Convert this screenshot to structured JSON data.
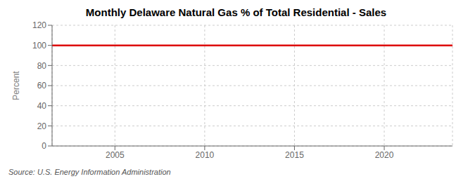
{
  "chart_data": {
    "type": "line",
    "title": "Monthly Delaware Natural Gas % of Total Residential - Sales",
    "ylabel": "Percent",
    "x": [
      2001.5,
      2023.8
    ],
    "values": [
      100.0,
      100.0
    ],
    "color": "#dd0000",
    "xlim": [
      2001.5,
      2023.8
    ],
    "xticks": [
      2005,
      2010,
      2015,
      2020
    ],
    "ylim": [
      0,
      120
    ],
    "yticks": [
      0,
      20,
      40,
      60,
      80,
      100,
      120
    ],
    "grid": true,
    "annotations": [
      "Source: U.S. Energy Information Administration"
    ]
  }
}
